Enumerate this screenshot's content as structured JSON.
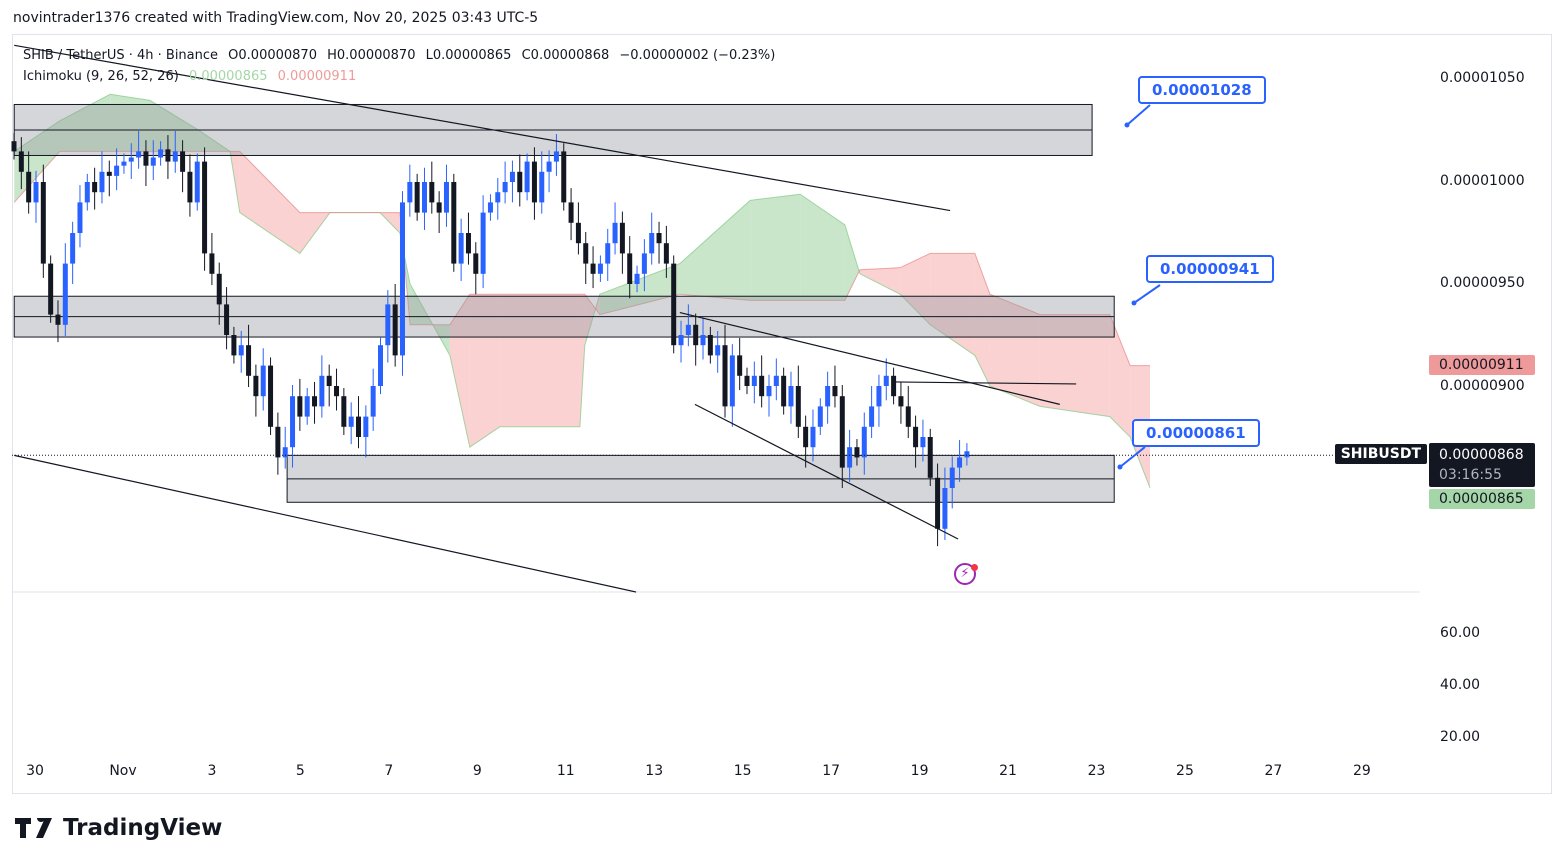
{
  "credit": "novintrader1376 created with TradingView.com, Nov 20, 2025 03:43 UTC-5",
  "legend": {
    "symbol": "SHIB / TetherUS · 4h · Binance",
    "open": "O0.00000870",
    "high": "H0.00000870",
    "low": "L0.00000865",
    "close": "C0.00000868",
    "change": "−0.00000002 (−0.23%)",
    "indicator": "Ichimoku (9, 26, 52, 26)",
    "ichimoku_a": "0.00000865",
    "ichimoku_b": "0.00000911"
  },
  "price_axis": [
    "0.00001050",
    "0.00001000",
    "0.00000950",
    "0.00000900"
  ],
  "volume_axis": [
    "60.00",
    "40.00",
    "20.00"
  ],
  "date_axis": [
    "30",
    "Nov",
    "3",
    "5",
    "7",
    "9",
    "11",
    "13",
    "15",
    "17",
    "19",
    "21",
    "23",
    "25",
    "27",
    "29"
  ],
  "tags": {
    "symbol": "SHIBUSDT",
    "last_price": "0.00000868",
    "countdown": "03:16:55",
    "span_b": "0.00000911",
    "span_a": "0.00000865"
  },
  "callouts": [
    "0.00001028",
    "0.00000941",
    "0.00000861"
  ],
  "colors": {
    "up": "#2962ff",
    "down": "#131722",
    "cloud_up": "#a5d6a7",
    "cloud_down": "#f8b4b4",
    "callout": "#2962ff",
    "zone": "#d1d4dc"
  },
  "brand": "TradingView",
  "chart_data": {
    "type": "candlestick",
    "interval": "4h",
    "closes": [
      1.015e-05,
      1.005e-05,
      9.9e-06,
      1e-05,
      9.6e-06,
      9.35e-06,
      9.3e-06,
      9.6e-06,
      9.75e-06,
      9.9e-06,
      1e-05,
      9.95e-06,
      1.005e-05,
      1.003e-05,
      1.008e-05,
      1.01e-05,
      1.012e-05,
      1.015e-05,
      1.008e-05,
      1.012e-05,
      1.016e-05,
      1.01e-05,
      1.015e-05,
      1.005e-05,
      9.9e-06,
      1.01e-05,
      9.65e-06,
      9.55e-06,
      9.4e-06,
      9.25e-06,
      9.15e-06,
      9.2e-06,
      9.05e-06,
      8.95e-06,
      9.1e-06,
      8.8e-06,
      8.65e-06,
      8.7e-06,
      8.95e-06,
      8.85e-06,
      8.95e-06,
      8.9e-06,
      9.05e-06,
      9e-06,
      8.95e-06,
      8.8e-06,
      8.85e-06,
      8.75e-06,
      8.85e-06,
      9e-06,
      9.2e-06,
      9.4e-06,
      9.15e-06,
      9.9e-06,
      1e-05,
      9.85e-06,
      1e-05,
      9.9e-06,
      9.85e-06,
      1e-05,
      9.6e-06,
      9.75e-06,
      9.65e-06,
      9.55e-06,
      9.85e-06,
      9.9e-06,
      9.95e-06,
      1e-05,
      1.005e-05,
      9.95e-06,
      1.01e-05,
      9.9e-06,
      1.005e-05,
      1.01e-05,
      1.015e-05,
      9.9e-06,
      9.8e-06,
      9.7e-06,
      9.6e-06,
      9.55e-06,
      9.6e-06,
      9.7e-06,
      9.8e-06,
      9.65e-06,
      9.5e-06,
      9.55e-06,
      9.65e-06,
      9.75e-06,
      9.7e-06,
      9.6e-06,
      9.2e-06,
      9.25e-06,
      9.3e-06,
      9.2e-06,
      9.25e-06,
      9.15e-06,
      9.2e-06,
      8.9e-06,
      9.15e-06,
      9.05e-06,
      9e-06,
      9.05e-06,
      8.95e-06,
      9e-06,
      9.05e-06,
      8.9e-06,
      9e-06,
      8.8e-06,
      8.7e-06,
      8.8e-06,
      8.9e-06,
      9e-06,
      8.95e-06,
      8.6e-06,
      8.7e-06,
      8.65e-06,
      8.8e-06,
      8.9e-06,
      9e-06,
      9.05e-06,
      8.95e-06,
      8.9e-06,
      8.8e-06,
      8.7e-06,
      8.75e-06,
      8.55e-06,
      8.3e-06,
      8.5e-06,
      8.6e-06,
      8.65e-06,
      8.68e-06
    ],
    "ichimoku_cloud": [
      [
        -0.47,
        1.015e-05,
        9.9e-06
      ],
      [
        0.56,
        1.03e-05,
        1.015e-05
      ],
      [
        1.7,
        1.043e-05,
        1.015e-05
      ],
      [
        2.6,
        1.04e-05,
        1.015e-05
      ],
      [
        3.73,
        1.025e-05,
        1.015e-05
      ],
      [
        4.41,
        1.015e-05,
        1.015e-05
      ],
      [
        4.63,
        9.85e-06,
        1.015e-05
      ],
      [
        5.99,
        9.65e-06,
        9.85e-06
      ],
      [
        6.67,
        9.85e-06,
        9.85e-06
      ],
      [
        7.8,
        9.85e-06,
        9.85e-06
      ],
      [
        8.25,
        9.75e-06,
        9.85e-06
      ],
      [
        8.48,
        9.5e-06,
        9.3e-06
      ],
      [
        9.38,
        9.15e-06,
        9.3e-06
      ],
      [
        9.83,
        8.7e-06,
        9.45e-06
      ],
      [
        10.51,
        8.8e-06,
        9.45e-06
      ],
      [
        12.32,
        8.8e-06,
        9.45e-06
      ],
      [
        12.43,
        9.2e-06,
        9.45e-06
      ],
      [
        12.77,
        9.45e-06,
        9.35e-06
      ],
      [
        14.58,
        9.6e-06,
        9.45e-06
      ],
      [
        16.17,
        9.91e-06,
        9.42e-06
      ],
      [
        17.3,
        9.94e-06,
        9.42e-06
      ],
      [
        18.31,
        9.79e-06,
        9.42e-06
      ],
      [
        18.65,
        9.55e-06,
        9.57e-06
      ],
      [
        19.56,
        9.45e-06,
        9.58e-06
      ],
      [
        20.24,
        9.3e-06,
        9.65e-06
      ],
      [
        21.25,
        9.15e-06,
        9.65e-06
      ],
      [
        21.59,
        9e-06,
        9.45e-06
      ],
      [
        22.72,
        8.9e-06,
        9.35e-06
      ],
      [
        24.3,
        8.85e-06,
        9.35e-06
      ],
      [
        24.76,
        8.75e-06,
        9.1e-06
      ],
      [
        25.21,
        8.5e-06,
        9.1e-06
      ]
    ],
    "zones": [
      [
        -0.47,
        23.9,
        1.013e-05,
        1.038e-05
      ],
      [
        -0.47,
        24.4,
        9.24e-06,
        9.44e-06
      ],
      [
        5.7,
        24.4,
        8.43e-06,
        8.66e-06
      ]
    ],
    "trendlines": [
      [
        [
          -0.47,
          1.067e-05
        ],
        [
          20.69,
          9.86e-06
        ]
      ],
      [
        [
          -0.47,
          8.66e-06
        ],
        [
          13.59,
          7.99e-06
        ]
      ],
      [
        [
          14.58,
          9.36e-06
        ],
        [
          23.17,
          8.91e-06
        ]
      ],
      [
        [
          14.92,
          8.91e-06
        ],
        [
          20.87,
          8.25e-06
        ]
      ],
      [
        [
          19.4,
          9.02e-06
        ],
        [
          23.54,
          9.01e-06
        ]
      ]
    ],
    "y_range": [
      7.9e-06,
      1.07e-05
    ]
  }
}
